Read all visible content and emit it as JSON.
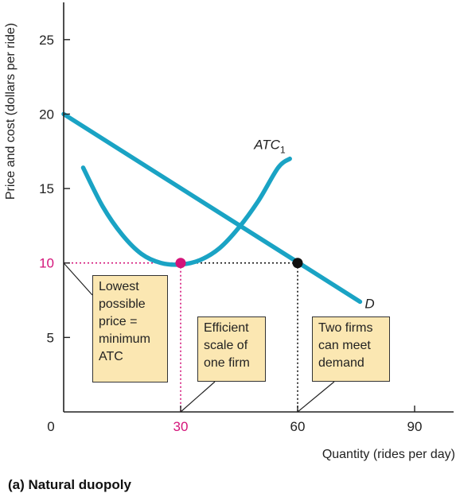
{
  "chart_data": {
    "type": "line",
    "title": "",
    "xlabel": "Quantity (rides per day)",
    "ylabel": "Price and cost (dollars per ride)",
    "xlim": [
      0,
      100
    ],
    "ylim": [
      0,
      27.5
    ],
    "x_ticks": [
      "0",
      "30",
      "60",
      "90"
    ],
    "x_tick_values": [
      0,
      30,
      60,
      90
    ],
    "y_ticks": [
      "5",
      "10",
      "15",
      "20",
      "25"
    ],
    "y_tick_values": [
      5,
      10,
      15,
      20,
      25
    ],
    "highlight_tick_color": "#d4147a",
    "series": [
      {
        "name": "ATC1",
        "label_main": "ATC",
        "label_sub": "1",
        "color": "#1aa3c4",
        "x": [
          5,
          10,
          15,
          20,
          25,
          30,
          35,
          40,
          45,
          50,
          55,
          58
        ],
        "y": [
          16.4,
          13.8,
          11.9,
          10.6,
          10.0,
          9.9,
          10.2,
          11.0,
          12.4,
          14.2,
          16.4,
          17.0
        ]
      },
      {
        "name": "D",
        "label_main": "D",
        "label_sub": "",
        "color": "#1aa3c4",
        "x": [
          0,
          76
        ],
        "y": [
          20.0,
          7.4
        ]
      }
    ],
    "points": [
      {
        "name": "minimum-atc-point",
        "x": 30,
        "y": 10,
        "color": "#d4147a"
      },
      {
        "name": "demand-meet-point",
        "x": 60,
        "y": 10,
        "color": "#111111"
      }
    ],
    "annotations": [
      {
        "name": "annotation-lowest-price",
        "lines": [
          "Lowest",
          "possible",
          "price =",
          "minimum",
          "ATC"
        ]
      },
      {
        "name": "annotation-efficient-scale",
        "lines": [
          "Efficient",
          "scale of",
          "one firm"
        ]
      },
      {
        "name": "annotation-two-firms",
        "lines": [
          "Two firms",
          "can meet",
          "demand"
        ]
      }
    ]
  },
  "caption": "(a) Natural duopoly"
}
